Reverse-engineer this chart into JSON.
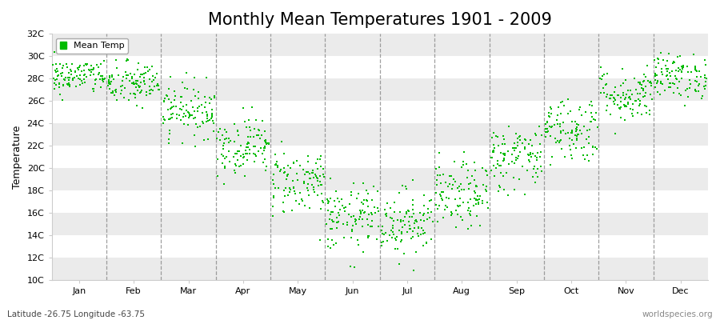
{
  "title": "Monthly Mean Temperatures 1901 - 2009",
  "ylabel": "Temperature",
  "subtitle_left": "Latitude -26.75 Longitude -63.75",
  "subtitle_right": "worldspecies.org",
  "legend_label": "Mean Temp",
  "marker_color": "#00BB00",
  "background_color": "#ffffff",
  "band_color": "#ebebeb",
  "ylim": [
    10,
    32
  ],
  "yticks": [
    10,
    12,
    14,
    16,
    18,
    20,
    22,
    24,
    26,
    28,
    30,
    32
  ],
  "ytick_labels": [
    "10C",
    "12C",
    "14C",
    "16C",
    "18C",
    "20C",
    "22C",
    "24C",
    "26C",
    "28C",
    "30C",
    "32C"
  ],
  "months": [
    "Jan",
    "Feb",
    "Mar",
    "Apr",
    "May",
    "Jun",
    "Jul",
    "Aug",
    "Sep",
    "Oct",
    "Nov",
    "Dec"
  ],
  "title_fontsize": 15,
  "axis_label_fontsize": 9,
  "tick_fontsize": 8,
  "n_years": 109,
  "mean_temps": [
    28.2,
    27.5,
    25.2,
    22.0,
    18.8,
    15.5,
    15.2,
    17.5,
    21.0,
    23.5,
    26.5,
    28.2
  ],
  "std_temps": [
    0.8,
    1.0,
    1.2,
    1.3,
    1.5,
    1.5,
    1.5,
    1.5,
    1.5,
    1.5,
    1.2,
    1.0
  ]
}
